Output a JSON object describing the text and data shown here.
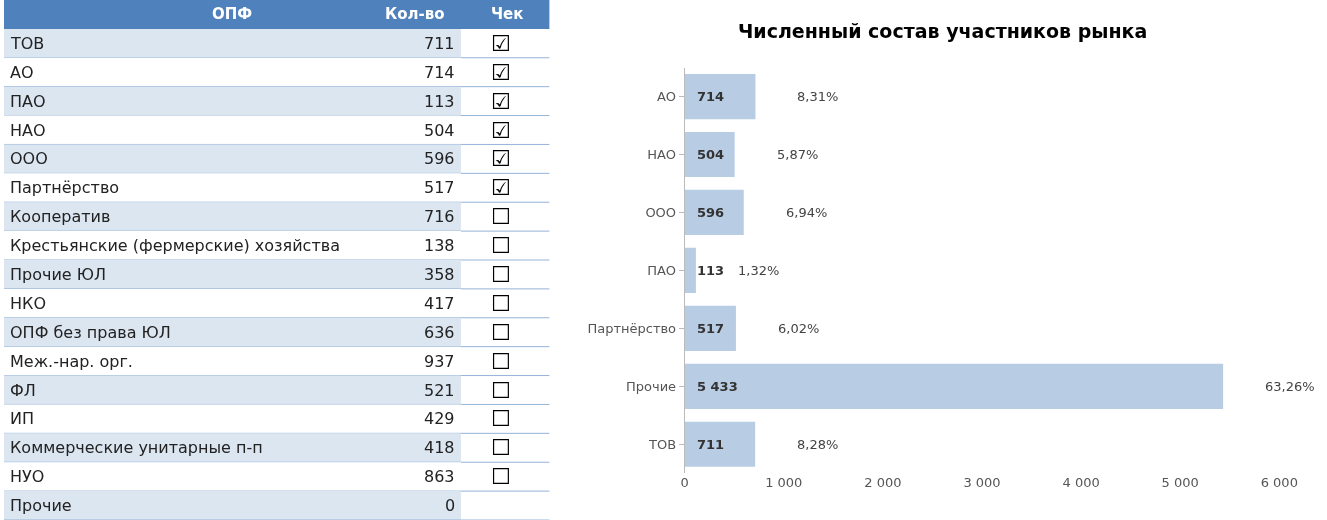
{
  "chart_data": [
    {
      "type": "other",
      "ylabel": "ОПФ",
      "categories": [
        "ТОВ",
        "АО",
        "ПАО",
        "НАО",
        "ООО",
        "Партнёрство",
        "Кооператив",
        "Крестьянские (фермерские) хозяйства",
        "Прочие ЮЛ",
        "НКО",
        "ОПФ без права ЮЛ",
        "Меж.-нар. орг.",
        "ФЛ",
        "ИП",
        "Коммерческие унитарные п-п",
        "НУО",
        "Прочие"
      ],
      "data_labels": true,
      "series": [
        {
          "name": "Кол-во",
          "colors": [
            "#dce6f1",
            "#ffffff",
            "#dce6f1",
            "#ffffff",
            "#dce6f1",
            "#ffffff",
            "#dce6f1",
            "#ffffff",
            "#dce6f1",
            "#ffffff",
            "#dce6f1",
            "#ffffff",
            "#dce6f1",
            "#ffffff",
            "#dce6f1",
            "#ffffff",
            "#dce6f1"
          ],
          "values": [
            711,
            714,
            113,
            504,
            596,
            517,
            716,
            138,
            358,
            417,
            636,
            937,
            521,
            429,
            418,
            863,
            0
          ]
        },
        {
          "name": "Чек",
          "values": [
            null,
            null,
            null,
            null,
            null,
            null,
            null,
            null,
            null,
            null,
            null,
            null,
            null,
            null,
            null,
            null,
            null
          ],
          "value_labels": [
            "☑",
            "☑",
            "☑",
            "☑",
            "☑",
            "☑",
            "☐",
            "☐",
            "☐",
            "☐",
            "☐",
            "☐",
            "☐",
            "☐",
            "☐",
            "☐",
            null
          ]
        }
      ]
    },
    {
      "type": "bar",
      "orientation": "horizontal",
      "title": "Численный состав участников рынка",
      "categories": [
        "АО",
        "НАО",
        "ООО",
        "ПАО",
        "Партнёрство",
        "Прочие",
        "ТОВ"
      ],
      "values": [
        714,
        504,
        596,
        113,
        517,
        5433,
        711
      ],
      "value_labels": [
        "714",
        "504",
        "596",
        "113",
        "517",
        "5 433",
        "711"
      ],
      "color": "#b8cce4",
      "xlim": [
        0,
        6000
      ],
      "xticks": [
        0,
        {
          "value": 1000,
          "label": "1 000"
        },
        {
          "value": 2000,
          "label": "2 000"
        },
        {
          "value": 3000,
          "label": "3 000"
        },
        {
          "value": 4000,
          "label": "4 000"
        },
        {
          "value": 5000,
          "label": "5 000"
        },
        {
          "value": 6000,
          "label": "6 000"
        }
      ],
      "annotations": [
        "8,31%",
        "5,87%",
        "6,94%",
        "1,32%",
        "6,02%",
        "63,26%",
        "8,28%"
      ]
    }
  ]
}
